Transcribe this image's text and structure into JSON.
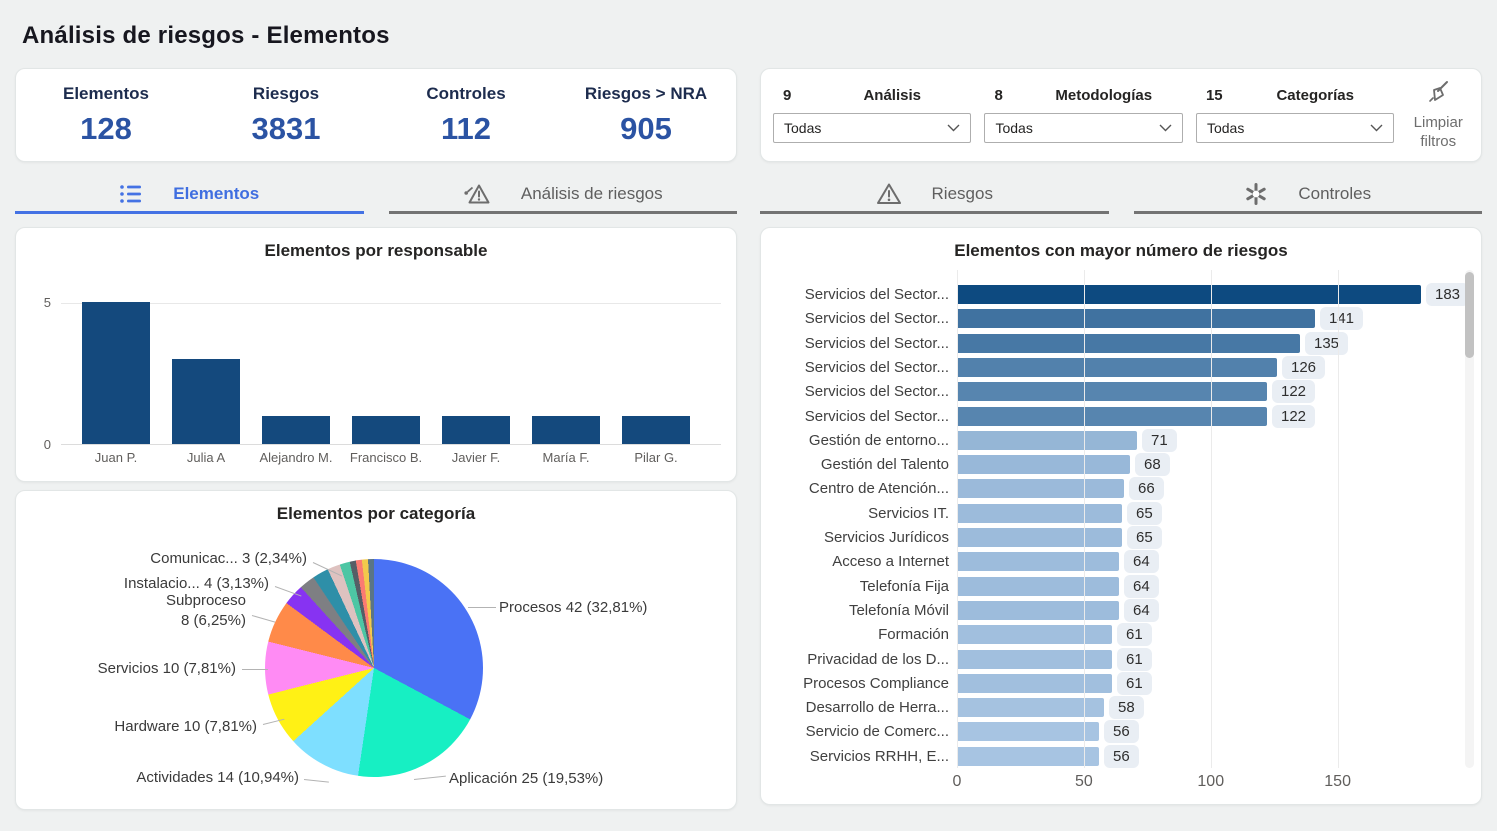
{
  "page": {
    "title": "Análisis de riesgos - Elementos",
    "accent": "#4472e4",
    "background": "#eff1f1"
  },
  "kpis": [
    {
      "label": "Elementos",
      "value": "128"
    },
    {
      "label": "Riesgos",
      "value": "3831"
    },
    {
      "label": "Controles",
      "value": "112"
    },
    {
      "label": "Riesgos > NRA",
      "value": "905"
    }
  ],
  "filters": {
    "slicers": [
      {
        "count": "9",
        "label": "Análisis",
        "value": "Todas"
      },
      {
        "count": "8",
        "label": "Metodologías",
        "value": "Todas"
      },
      {
        "count": "15",
        "label": "Categorías",
        "value": "Todas"
      }
    ],
    "clear_line1": "Limpiar",
    "clear_line2": "filtros",
    "clear_icon": "broom-icon"
  },
  "tabs": [
    {
      "label": "Elementos",
      "icon": "list-icon",
      "active": true
    },
    {
      "label": "Análisis de riesgos",
      "icon": "risk-analysis-icon",
      "active": false
    },
    {
      "label": "Riesgos",
      "icon": "warning-icon",
      "active": false
    },
    {
      "label": "Controles",
      "icon": "asterisk-icon",
      "active": false
    }
  ],
  "chart_data": [
    {
      "type": "bar",
      "title": "Elementos por responsable",
      "categories": [
        "Juan P.",
        "Julia A",
        "Alejandro M.",
        "Francisco B.",
        "Javier F.",
        "María F.",
        "Pilar G."
      ],
      "values": [
        5,
        3,
        1,
        1,
        1,
        1,
        1
      ],
      "xlabel": "",
      "ylabel": "",
      "ylim": [
        0,
        5
      ],
      "yticks": [
        0,
        5
      ],
      "grid": "horizontal",
      "bar_color": "#14497d"
    },
    {
      "type": "pie",
      "title": "Elementos por categoría",
      "slices": [
        {
          "label": "Procesos",
          "value": 42,
          "pct": 32.81,
          "display": "Procesos 42 (32,81%)",
          "color": "#4a72f5"
        },
        {
          "label": "Aplicación",
          "value": 25,
          "pct": 19.53,
          "display": "Aplicación 25 (19,53%)",
          "color": "#17efc3"
        },
        {
          "label": "Actividades",
          "value": 14,
          "pct": 10.94,
          "display": "Actividades 14 (10,94%)",
          "color": "#7edfff"
        },
        {
          "label": "Hardware",
          "value": 10,
          "pct": 7.81,
          "display": "Hardware 10 (7,81%)",
          "color": "#fff115"
        },
        {
          "label": "Servicios",
          "value": 10,
          "pct": 7.81,
          "display": "Servicios 10 (7,81%)",
          "color": "#ff8bf4"
        },
        {
          "label": "Subproceso",
          "value": 8,
          "pct": 6.25,
          "display": "Subproceso|8 (6,25%)",
          "color": "#ff8a49"
        },
        {
          "label": "Instalacio...",
          "value": 4,
          "pct": 3.13,
          "display": "Instalacio... 4 (3,13%)",
          "color": "#8733f2"
        },
        {
          "label": "Comunicac...",
          "value": 3,
          "pct": 2.34,
          "display": "Comunicac... 3 (2,34%)",
          "color": "#7e7f83"
        }
      ],
      "others_unlabeled_segments": [
        {
          "pct": 2.4,
          "color": "#2e8fa8"
        },
        {
          "pct": 1.9,
          "color": "#dec2c0"
        },
        {
          "pct": 1.5,
          "color": "#4dc6a4"
        },
        {
          "pct": 0.9,
          "color": "#555e66"
        },
        {
          "pct": 0.9,
          "color": "#fb7b72"
        },
        {
          "pct": 0.9,
          "color": "#f2c94c"
        },
        {
          "pct": 0.88,
          "color": "#5a7586"
        }
      ]
    },
    {
      "type": "bar-horizontal",
      "title": "Elementos con mayor número de riesgos",
      "categories": [
        "Servicios del Sector...",
        "Servicios del Sector...",
        "Servicios del Sector...",
        "Servicios del Sector...",
        "Servicios del Sector...",
        "Servicios del Sector...",
        "Gestión de entorno...",
        "Gestión del Talento",
        "Centro de Atención...",
        "Servicios IT.",
        "Servicios Jurídicos",
        "Acceso a Internet",
        "Telefonía Fija",
        "Telefonía Móvil",
        "Formación",
        "Privacidad de los D...",
        "Procesos Compliance",
        "Desarrollo de Herra...",
        "Servicio de Comerc...",
        "Servicios RRHH, E..."
      ],
      "values": [
        183,
        141,
        135,
        126,
        122,
        122,
        71,
        68,
        66,
        65,
        65,
        64,
        64,
        64,
        61,
        61,
        61,
        58,
        56,
        56
      ],
      "xticks": [
        0,
        50,
        100,
        150
      ],
      "xlim": [
        0,
        199
      ],
      "grid": "vertical",
      "color_scale": {
        "min_value": 56,
        "max_value": 183,
        "min_color": "#a7c4e2",
        "max_color": "#0d4a80"
      }
    }
  ]
}
